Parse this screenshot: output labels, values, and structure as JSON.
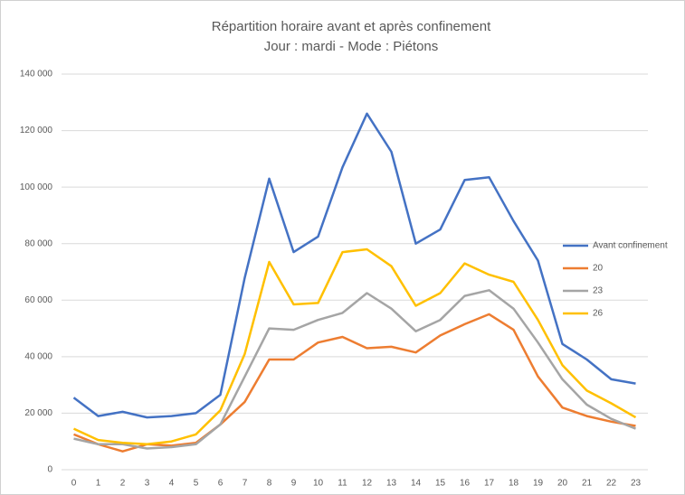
{
  "chart_data": {
    "type": "line",
    "title": "Répartition horaire avant et après confinement",
    "subtitle": "Jour : mardi - Mode : Piétons",
    "categories": [
      "0",
      "1",
      "2",
      "3",
      "4",
      "5",
      "6",
      "7",
      "8",
      "9",
      "10",
      "11",
      "12",
      "13",
      "14",
      "15",
      "16",
      "17",
      "18",
      "19",
      "20",
      "21",
      "22",
      "23"
    ],
    "series": [
      {
        "name": "Avant confinement",
        "color": "#4472c4",
        "values": [
          25500,
          19000,
          20500,
          18500,
          19000,
          20000,
          26500,
          68000,
          103000,
          77000,
          82500,
          107000,
          126000,
          112500,
          80000,
          85000,
          102500,
          103500,
          88000,
          74000,
          44500,
          39000,
          32000,
          30500
        ]
      },
      {
        "name": "20",
        "color": "#ed7d31",
        "values": [
          12500,
          9000,
          6500,
          9000,
          8500,
          9500,
          16000,
          24000,
          39000,
          39000,
          45000,
          47000,
          43000,
          43500,
          41500,
          47500,
          51500,
          55000,
          49500,
          33000,
          22000,
          19000,
          17000,
          15500
        ]
      },
      {
        "name": "23",
        "color": "#a5a5a5",
        "values": [
          11000,
          9000,
          9000,
          7500,
          8000,
          9000,
          16000,
          33000,
          50000,
          49500,
          53000,
          55500,
          62500,
          57000,
          49000,
          53000,
          61500,
          63500,
          57000,
          45000,
          32000,
          23000,
          18000,
          14500
        ]
      },
      {
        "name": "26",
        "color": "#ffc000",
        "values": [
          14500,
          10500,
          9500,
          9000,
          10000,
          12500,
          21000,
          41000,
          73500,
          58500,
          59000,
          77000,
          78000,
          72000,
          58000,
          62500,
          73000,
          69000,
          66500,
          53000,
          37000,
          28000,
          23500,
          18500
        ]
      }
    ],
    "ylim": [
      0,
      140000
    ],
    "yticks": [
      0,
      {
        "value": 20000,
        "label": "20 000"
      },
      {
        "value": 40000,
        "label": "40 000"
      },
      {
        "value": 60000,
        "label": "60 000"
      },
      {
        "value": 80000,
        "label": "80 000"
      },
      {
        "value": 100000,
        "label": "100 000"
      },
      {
        "value": 120000,
        "label": "120 000"
      },
      {
        "value": 140000,
        "label": "140 000"
      }
    ],
    "grid": true,
    "legend": "right"
  }
}
